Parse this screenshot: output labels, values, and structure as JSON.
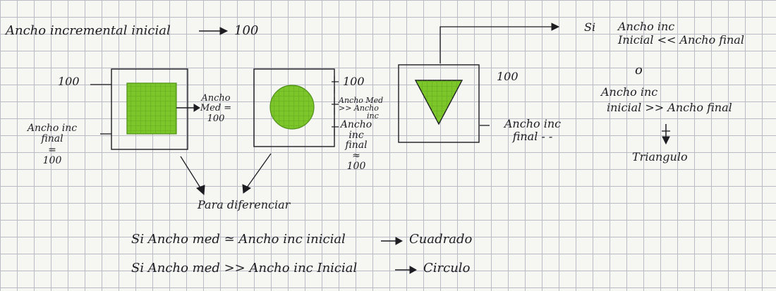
{
  "header": {
    "text": "Ancho incremental inicial",
    "value": "100"
  },
  "square": {
    "size_label": "100",
    "side_label": [
      "Ancho inc",
      "final",
      "=",
      "100"
    ],
    "right_label": [
      "Ancho",
      "Med =",
      "100"
    ]
  },
  "circle": {
    "top_label": "100",
    "mid_label": [
      "Ancho Med",
      ">> Ancho",
      "inc"
    ],
    "bottom_label": [
      "Ancho",
      "inc",
      "final",
      "≈",
      "100"
    ]
  },
  "triangle": {
    "top_label": "100",
    "side_label": [
      "Ancho inc",
      "final - -"
    ]
  },
  "right_rule": {
    "si": "Si",
    "cond1": [
      "Ancho inc",
      "Inicial << Ancho final"
    ],
    "or": "o",
    "cond2": [
      "Ancho inc",
      "inicial >> Ancho final"
    ],
    "result": "Triangulo"
  },
  "bottom": {
    "para": "Para diferenciar",
    "rule1": {
      "cond": "Si  Ancho  med ≃ Ancho inc inicial",
      "result": "Cuadrado"
    },
    "rule2": {
      "cond": "Si  Ancho  med >> Ancho inc Inicial",
      "result": "Circulo"
    }
  },
  "colors": {
    "ink": "#1d1d22",
    "green_fill": "#7cc62a",
    "green_dark": "#4f8f1a",
    "grid": "#b9bcc4",
    "paper": "#f6f6f3"
  }
}
